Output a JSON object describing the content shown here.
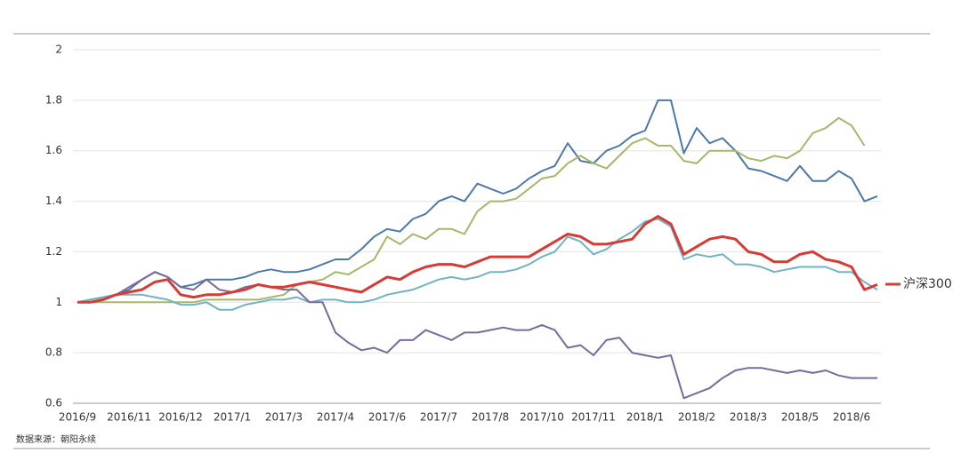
{
  "chart_data": {
    "type": "line",
    "categories": [
      "2016/9",
      null,
      null,
      null,
      "2016/11",
      null,
      null,
      null,
      "2016/12",
      null,
      null,
      null,
      "2017/1",
      null,
      null,
      null,
      "2017/3",
      null,
      null,
      null,
      "2017/4",
      null,
      null,
      null,
      "2017/6",
      null,
      null,
      null,
      "2017/7",
      null,
      null,
      null,
      "2017/8",
      null,
      null,
      null,
      "2017/10",
      null,
      null,
      null,
      "2017/11",
      null,
      null,
      null,
      "2018/1",
      null,
      null,
      null,
      "2018/2",
      null,
      null,
      null,
      "2018/3",
      null,
      null,
      null,
      "2018/5",
      null,
      null,
      null,
      "2018/6",
      null,
      null
    ],
    "series": [
      {
        "color": "#4e79a7",
        "values": [
          1.0,
          1.01,
          1.02,
          1.03,
          1.05,
          1.09,
          1.12,
          1.1,
          1.06,
          1.07,
          1.09,
          1.09,
          1.09,
          1.1,
          1.12,
          1.13,
          1.12,
          1.12,
          1.13,
          1.15,
          1.17,
          1.17,
          1.21,
          1.26,
          1.29,
          1.28,
          1.33,
          1.35,
          1.4,
          1.42,
          1.4,
          1.47,
          1.45,
          1.43,
          1.45,
          1.49,
          1.52,
          1.54,
          1.63,
          1.56,
          1.55,
          1.6,
          1.62,
          1.66,
          1.68,
          1.8,
          1.8,
          1.59,
          1.69,
          1.63,
          1.65,
          1.6,
          1.53,
          1.52,
          1.5,
          1.48,
          1.54,
          1.48,
          1.48,
          1.52,
          1.49,
          1.4,
          1.42
        ]
      },
      {
        "color": "#a5b86a",
        "values": [
          1.0,
          1.0,
          1.0,
          1.0,
          1.0,
          1.0,
          1.0,
          1.0,
          1.0,
          1.0,
          1.01,
          1.01,
          1.01,
          1.01,
          1.01,
          1.02,
          1.03,
          1.07,
          1.08,
          1.09,
          1.12,
          1.11,
          1.14,
          1.17,
          1.26,
          1.23,
          1.27,
          1.25,
          1.29,
          1.29,
          1.27,
          1.36,
          1.4,
          1.4,
          1.41,
          1.45,
          1.49,
          1.5,
          1.55,
          1.58,
          1.55,
          1.53,
          1.58,
          1.63,
          1.65,
          1.62,
          1.62,
          1.56,
          1.55,
          1.6,
          1.6,
          1.6,
          1.57,
          1.56,
          1.58,
          1.57,
          1.6,
          1.67,
          1.69,
          1.73,
          1.7,
          1.62,
          null
        ]
      },
      {
        "color": "#72b3c3",
        "values": [
          1.0,
          1.01,
          1.02,
          1.03,
          1.03,
          1.03,
          1.02,
          1.01,
          0.99,
          0.99,
          1.0,
          0.97,
          0.97,
          0.99,
          1.0,
          1.01,
          1.01,
          1.02,
          1.0,
          1.01,
          1.01,
          1.0,
          1.0,
          1.01,
          1.03,
          1.04,
          1.05,
          1.07,
          1.09,
          1.1,
          1.09,
          1.1,
          1.12,
          1.12,
          1.13,
          1.15,
          1.18,
          1.2,
          1.26,
          1.24,
          1.19,
          1.21,
          1.25,
          1.28,
          1.32,
          1.33,
          1.3,
          1.17,
          1.19,
          1.18,
          1.19,
          1.15,
          1.15,
          1.14,
          1.12,
          1.13,
          1.14,
          1.14,
          1.14,
          1.12,
          1.12,
          1.08,
          1.05
        ]
      },
      {
        "color": "#7a6a9c",
        "values": [
          1.0,
          1.0,
          1.01,
          1.03,
          1.06,
          1.09,
          1.12,
          1.1,
          1.06,
          1.05,
          1.09,
          1.05,
          1.04,
          1.06,
          1.07,
          1.06,
          1.05,
          1.05,
          1.0,
          1.0,
          0.88,
          0.84,
          0.81,
          0.82,
          0.8,
          0.85,
          0.85,
          0.89,
          0.87,
          0.85,
          0.88,
          0.88,
          0.89,
          0.9,
          0.89,
          0.89,
          0.91,
          0.89,
          0.82,
          0.83,
          0.79,
          0.85,
          0.86,
          0.8,
          0.79,
          0.78,
          0.79,
          0.62,
          0.64,
          0.66,
          0.7,
          0.73,
          0.74,
          0.74,
          0.73,
          0.72,
          0.73,
          0.72,
          0.73,
          0.71,
          0.7,
          0.7,
          0.7
        ]
      },
      {
        "name": "沪深300",
        "color": "#d63b35",
        "values": [
          1.0,
          1.0,
          1.01,
          1.03,
          1.04,
          1.05,
          1.08,
          1.09,
          1.03,
          1.02,
          1.03,
          1.03,
          1.04,
          1.05,
          1.07,
          1.06,
          1.06,
          1.07,
          1.08,
          1.07,
          1.06,
          1.05,
          1.04,
          1.07,
          1.1,
          1.09,
          1.12,
          1.14,
          1.15,
          1.15,
          1.14,
          1.16,
          1.18,
          1.18,
          1.18,
          1.18,
          1.21,
          1.24,
          1.27,
          1.26,
          1.23,
          1.23,
          1.24,
          1.25,
          1.31,
          1.34,
          1.31,
          1.19,
          1.22,
          1.25,
          1.26,
          1.25,
          1.2,
          1.19,
          1.16,
          1.16,
          1.19,
          1.2,
          1.17,
          1.16,
          1.14,
          1.05,
          1.07
        ]
      }
    ],
    "ylim": [
      0.6,
      2
    ],
    "yticks": [
      0.6,
      0.8,
      1,
      1.2,
      1.4,
      1.6,
      1.8,
      2
    ],
    "grid": true,
    "legend": "right",
    "source": "数据来源：朝阳永续"
  }
}
